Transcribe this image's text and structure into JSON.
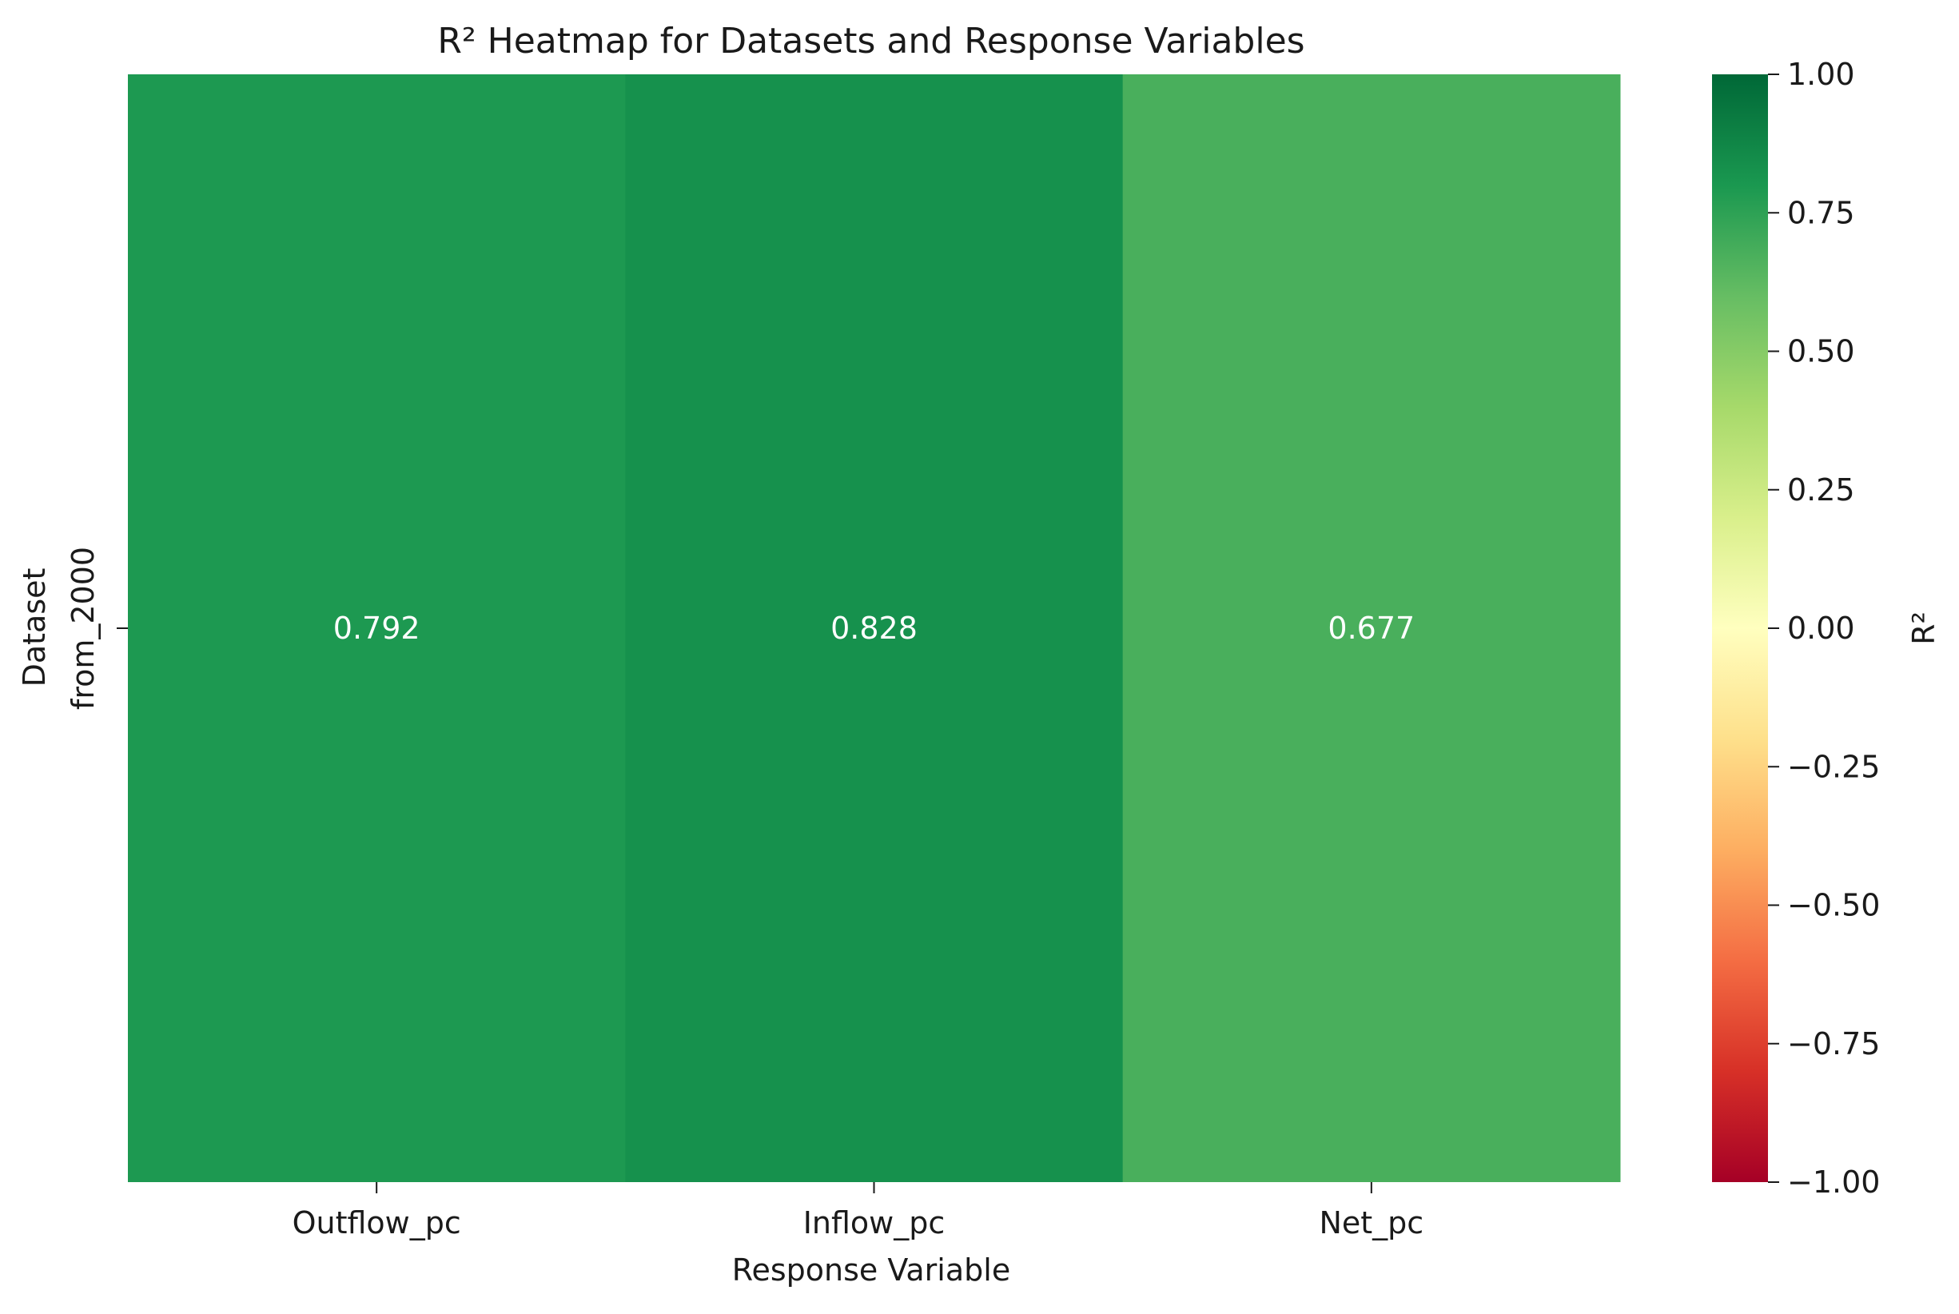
{
  "chart_data": {
    "type": "heatmap",
    "title": "R² Heatmap for Datasets and Response Variables",
    "xlabel": "Response Variable",
    "ylabel": "Dataset",
    "x_categories": [
      "Outflow_pc",
      "Inflow_pc",
      "Net_pc"
    ],
    "y_categories": [
      "from_2000"
    ],
    "values": [
      [
        0.792,
        0.828,
        0.677
      ]
    ],
    "value_labels": [
      [
        "0.792",
        "0.828",
        "0.677"
      ]
    ],
    "colorbar": {
      "label": "R²",
      "colormap": "RdYlGn",
      "range": [
        -1.0,
        1.0
      ],
      "ticks": [
        -1.0,
        -0.75,
        -0.5,
        -0.25,
        0.0,
        0.25,
        0.5,
        0.75,
        1.0
      ],
      "tick_labels": [
        "−1.00",
        "−0.75",
        "−0.50",
        "−0.25",
        "0.00",
        "0.25",
        "0.50",
        "0.75",
        "1.00"
      ],
      "colors": [
        "#a50026",
        "#d73027",
        "#f46d43",
        "#fdae61",
        "#fee08b",
        "#ffffbf",
        "#d9ef8b",
        "#a6d96a",
        "#66bd63",
        "#1a9850",
        "#006837"
      ]
    },
    "grid": false
  }
}
